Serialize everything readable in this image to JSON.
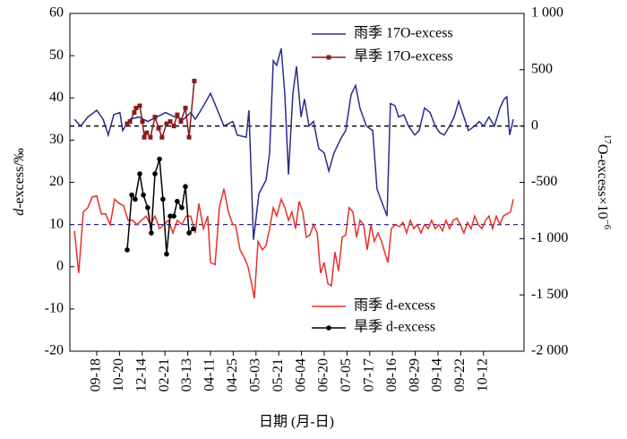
{
  "chart_data": {
    "type": "line",
    "xlabel": "日期 (月-日)",
    "ylabel": [
      "d",
      "-excess/‰"
    ],
    "y2label": [
      "17",
      "O-excess×10",
      "−6"
    ],
    "xlim": [
      -1.18,
      18.78
    ],
    "xticks": [
      {
        "value": 0,
        "label": "09-18"
      },
      {
        "value": 1,
        "label": "10-20"
      },
      {
        "value": 2,
        "label": "12-14"
      },
      {
        "value": 3,
        "label": "02-21"
      },
      {
        "value": 4,
        "label": "03-13"
      },
      {
        "value": 5,
        "label": "04-11"
      },
      {
        "value": 6,
        "label": "04-25"
      },
      {
        "value": 7,
        "label": "05-03"
      },
      {
        "value": 8,
        "label": "05-21"
      },
      {
        "value": 9,
        "label": "06-04"
      },
      {
        "value": 10,
        "label": "06-20"
      },
      {
        "value": 11,
        "label": "07-05"
      },
      {
        "value": 12,
        "label": "07-17"
      },
      {
        "value": 13,
        "label": "08-16"
      },
      {
        "value": 14,
        "label": "08-29"
      },
      {
        "value": 15,
        "label": "09-14"
      },
      {
        "value": 16,
        "label": "09-22"
      },
      {
        "value": 17,
        "label": "10-12"
      }
    ],
    "ylim": [
      -20,
      60
    ],
    "yticks": [
      -20,
      -10,
      0,
      10,
      20,
      30,
      40,
      50,
      60
    ],
    "y2lim": [
      -2000,
      1000
    ],
    "y2ticks": [
      {
        "value": -2000,
        "label": "-2 000"
      },
      {
        "value": -1500,
        "label": "-1 500"
      },
      {
        "value": -1000,
        "label": "-1 000"
      },
      -500,
      0,
      500,
      {
        "value": 1000,
        "label": "1 000"
      }
    ],
    "ref_lines": [
      {
        "axis": "y2",
        "value": 0,
        "color": "#000000"
      },
      {
        "axis": "y",
        "value": 10,
        "color": "#2b2b8c"
      }
    ],
    "series": [
      {
        "name": "雨季 17O-excess",
        "color": "#2b2b8c",
        "axis": "y2",
        "marker": "none",
        "x": [
          -0.98,
          -0.71,
          -0.39,
          0,
          0.28,
          0.51,
          0.75,
          1.02,
          1.14,
          1.46,
          1.85,
          2.24,
          2.64,
          3.03,
          3.43,
          3.82,
          4.13,
          4.33,
          4.61,
          5.0,
          5.31,
          5.59,
          5.98,
          6.18,
          6.57,
          6.69,
          6.89,
          7.13,
          7.44,
          7.6,
          7.76,
          7.91,
          8.11,
          8.27,
          8.43,
          8.62,
          8.78,
          8.98,
          9.13,
          9.33,
          9.53,
          9.76,
          10.0,
          10.2,
          10.43,
          10.71,
          10.94,
          11.18,
          11.38,
          11.57,
          11.85,
          12.13,
          12.32,
          12.76,
          12.91,
          13.11,
          13.27,
          13.5,
          13.7,
          13.98,
          14.17,
          14.41,
          14.65,
          14.88,
          15.08,
          15.28,
          15.51,
          15.71,
          15.91,
          16.14,
          16.34,
          16.61,
          16.81,
          17.01,
          17.24,
          17.48,
          17.72,
          17.91,
          18.03,
          18.15,
          18.31
        ],
        "values": [
          60,
          0,
          80,
          140,
          60,
          -80,
          100,
          120,
          -40,
          60,
          80,
          40,
          80,
          120,
          80,
          60,
          120,
          60,
          150,
          290,
          140,
          0,
          40,
          -80,
          -100,
          140,
          -1010,
          -600,
          -480,
          -240,
          580,
          540,
          690,
          280,
          -430,
          280,
          530,
          80,
          240,
          0,
          40,
          -200,
          -240,
          -400,
          -240,
          -120,
          -40,
          280,
          360,
          160,
          0,
          -40,
          -560,
          -800,
          200,
          180,
          80,
          100,
          0,
          -80,
          -40,
          160,
          120,
          0,
          -60,
          -80,
          0,
          80,
          220,
          80,
          -40,
          0,
          40,
          0,
          80,
          0,
          160,
          240,
          260,
          -80,
          60
        ]
      },
      {
        "name": "旱季 17O-excess",
        "color": "#8b1a1a",
        "axis": "y2",
        "marker": "square",
        "x": [
          1.34,
          1.46,
          1.65,
          1.73,
          1.89,
          2.01,
          2.09,
          2.2,
          2.36,
          2.56,
          2.72,
          2.87,
          3.07,
          3.23,
          3.39,
          3.54,
          3.7,
          3.9,
          4.06,
          4.29
        ],
        "values": [
          20,
          40,
          120,
          160,
          180,
          40,
          -100,
          -60,
          -100,
          80,
          -20,
          -100,
          20,
          40,
          0,
          100,
          40,
          160,
          -100,
          400
        ]
      },
      {
        "name": "雨季 d-excess",
        "color": "#e8302a",
        "axis": "y",
        "marker": "none",
        "x": [
          -0.98,
          -0.79,
          -0.59,
          -0.39,
          -0.2,
          0,
          0.2,
          0.39,
          0.59,
          0.79,
          0.98,
          1.18,
          1.38,
          1.57,
          1.77,
          1.97,
          2.17,
          2.36,
          2.56,
          2.76,
          2.95,
          3.15,
          3.35,
          3.54,
          3.74,
          3.94,
          4.13,
          4.33,
          4.49,
          4.69,
          4.88,
          5.0,
          5.2,
          5.39,
          5.59,
          5.79,
          5.98,
          6.1,
          6.3,
          6.5,
          6.65,
          6.81,
          6.93,
          7.09,
          7.28,
          7.44,
          7.6,
          7.76,
          7.91,
          8.11,
          8.27,
          8.43,
          8.58,
          8.74,
          8.9,
          9.06,
          9.21,
          9.37,
          9.53,
          9.69,
          9.84,
          10.0,
          10.16,
          10.31,
          10.47,
          10.63,
          10.79,
          10.94,
          11.1,
          11.26,
          11.42,
          11.57,
          11.73,
          11.89,
          12.05,
          12.2,
          12.36,
          12.52,
          12.68,
          12.8,
          12.95,
          13.11,
          13.31,
          13.46,
          13.62,
          13.78,
          13.94,
          14.09,
          14.25,
          14.41,
          14.57,
          14.72,
          14.88,
          15.04,
          15.2,
          15.35,
          15.51,
          15.67,
          15.83,
          15.98,
          16.14,
          16.3,
          16.46,
          16.61,
          16.77,
          16.93,
          17.09,
          17.24,
          17.4,
          17.56,
          17.72,
          17.87,
          18.03,
          18.19,
          18.31
        ],
        "values": [
          8.5,
          -1.5,
          13,
          14,
          16.5,
          16.8,
          12.5,
          12.5,
          10,
          16,
          15,
          14.5,
          11,
          11,
          10,
          11,
          12,
          10,
          12,
          9,
          10,
          11,
          8,
          11,
          10,
          12,
          12,
          8,
          15,
          9,
          12,
          1,
          0.5,
          14,
          18.5,
          13,
          10,
          10,
          4,
          2,
          0,
          -4,
          -7.5,
          6,
          4,
          5,
          9,
          14,
          12,
          16,
          14,
          11,
          13,
          9,
          15.5,
          13,
          7,
          7.5,
          10,
          8,
          -1.5,
          1,
          -4,
          -4.5,
          3.5,
          -1,
          7,
          7.5,
          14,
          13,
          7,
          11,
          10,
          4,
          10,
          6,
          8,
          6,
          3,
          1,
          9,
          10,
          9.5,
          10.5,
          8,
          11,
          9,
          10,
          8,
          10,
          9,
          11,
          9,
          10,
          8.5,
          11,
          9,
          11,
          11.5,
          10,
          8,
          10.5,
          9,
          12,
          10,
          9,
          11,
          12,
          9,
          12,
          10,
          12,
          12.5,
          13,
          16
        ]
      },
      {
        "name": "旱季 d-excess",
        "color": "#000000",
        "axis": "y",
        "marker": "circle",
        "x": [
          1.34,
          1.54,
          1.69,
          1.89,
          2.05,
          2.24,
          2.4,
          2.56,
          2.76,
          2.91,
          3.07,
          3.23,
          3.39,
          3.54,
          3.74,
          3.9,
          4.06,
          4.25
        ],
        "values": [
          4,
          17,
          16,
          22,
          17,
          14,
          8,
          22,
          25.5,
          16,
          3,
          12,
          12,
          15.5,
          14,
          19,
          8,
          9
        ]
      }
    ]
  }
}
